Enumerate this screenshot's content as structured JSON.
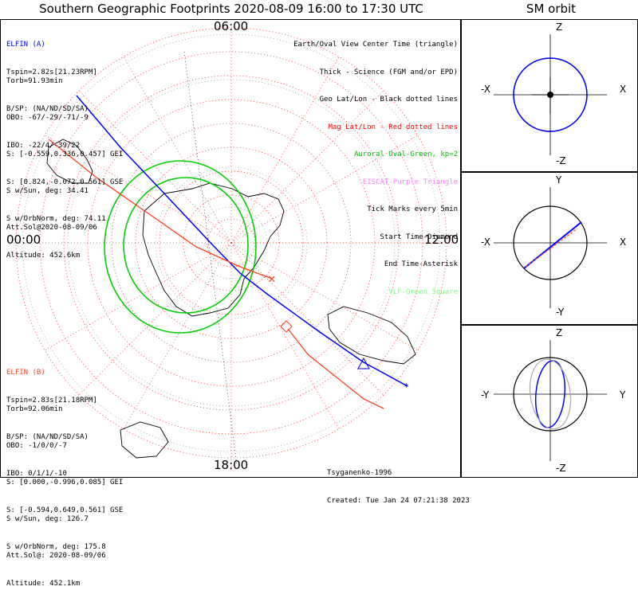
{
  "title": "Southern Geographic Footprints 2020-08-09 16:00 to 17:30 UTC",
  "sm_title": "SM orbit",
  "time_labels": {
    "top": "06:00",
    "left": "00:00",
    "right": "12:00",
    "bottom": "18:00"
  },
  "elfin_a": {
    "name": "ELFIN (A)",
    "lines": [
      "Tspin=2.82s[21.23RPM]",
      "Torb=91.93min",
      "B/SP: (NA/ND/SD/SA)",
      "OBO: -67/-29/-71/-9",
      "IBO: -22/4/-39/22",
      "S: [-0.559,0.336,0.457] GEI",
      "S: [0.824,-0.072,0.561] GSE",
      "S w/Sun, deg: 34.41",
      "S w/OrbNorm, deg: 74.11",
      "Att.Sol@2020-08-09/06",
      "Altitude: 452.6km"
    ],
    "color": "#0000ff"
  },
  "elfin_b": {
    "name": "ELFIN (B)",
    "lines": [
      "Tspin=2.83s[21.18RPM]",
      "Torb=92.06min",
      "B/SP: (NA/ND/SD/SA)",
      "OBO: -1/0/0/-7",
      "IBO: 0/1/1/-10",
      "S: [0.000,-0.996,0.085] GEI",
      "S: [-0.594,0.649,0.561] GSE",
      "S w/Sun, deg: 126.7",
      "S w/OrbNorm, deg: 175.8",
      "Att.Sol@: 2020-08-09/06",
      "Altitude: 452.1km"
    ],
    "color": "#ff4020"
  },
  "legend": [
    {
      "text": "Earth/Oval View Center Time (triangle)",
      "color": "#000000"
    },
    {
      "text": "Thick - Science (FGM and/or EPD)",
      "color": "#000000"
    },
    {
      "text": "Geo Lat/Lon - Black dotted lines",
      "color": "#000000"
    },
    {
      "text": "Mag Lat/Lon - Red dotted lines",
      "color": "#ff0000"
    },
    {
      "text": "Auroral Oval-Green, kp=2",
      "color": "#00c000"
    },
    {
      "text": "EISCAT-Purple Triangle",
      "color": "#ff80ff"
    },
    {
      "text": "Tick Marks every 5min",
      "color": "#000000"
    },
    {
      "text": "Start Time-Diamond",
      "color": "#000000"
    },
    {
      "text": "End Time-Asterisk",
      "color": "#000000"
    },
    {
      "text": "VLF-Green Square",
      "color": "#80ff80"
    }
  ],
  "footer": [
    "Tsyganenko-1996",
    "Created: Tue Jan 24 07:21:38 2023"
  ],
  "sm_panels": [
    {
      "top": "Z",
      "bottom": "-Z",
      "left": "-X",
      "right": "X"
    },
    {
      "top": "Y",
      "bottom": "-Y",
      "left": "-X",
      "right": "X"
    },
    {
      "top": "Z",
      "bottom": "-Z",
      "left": "-Y",
      "right": "Y"
    }
  ]
}
